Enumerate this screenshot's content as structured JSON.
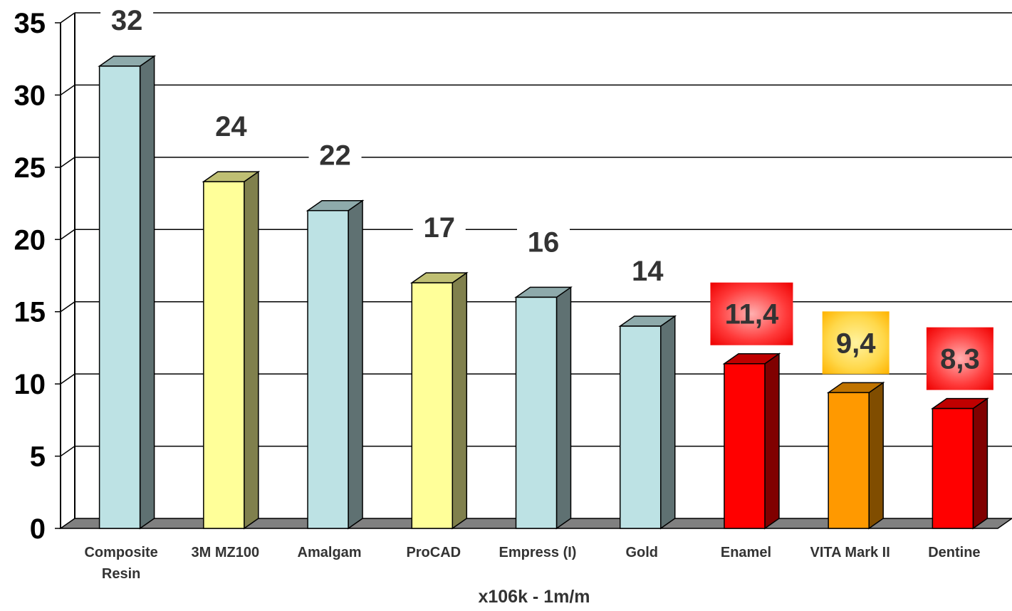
{
  "chart_data": {
    "type": "bar",
    "xlabel": "x106k - 1m/m",
    "ylabel": "",
    "ylim": [
      0,
      35
    ],
    "yticks": [
      "0",
      "5",
      "10",
      "15",
      "20",
      "25",
      "30",
      "35"
    ],
    "grid": true,
    "three_d": true,
    "categories": [
      "Composite Resin",
      "3M MZ100",
      "Amalgam",
      "ProCAD",
      "Empress (I)",
      "Gold",
      "Enamel",
      "VITA Mark II",
      "Dentine"
    ],
    "values": [
      32,
      24,
      22,
      17,
      16,
      14,
      11.4,
      9.4,
      8.3
    ],
    "data_labels": [
      "32",
      "24",
      "22",
      "17",
      "16",
      "14",
      "11,4",
      "9,4",
      "8,3"
    ],
    "bar_colors": [
      "#bde2e4",
      "#ffff99",
      "#bde2e4",
      "#ffff99",
      "#bde2e4",
      "#bde2e4",
      "#ff0000",
      "#ff9900",
      "#ff0000"
    ],
    "label_highlight": [
      "none",
      "none",
      "none",
      "none",
      "none",
      "none",
      "red",
      "orange",
      "red"
    ]
  }
}
